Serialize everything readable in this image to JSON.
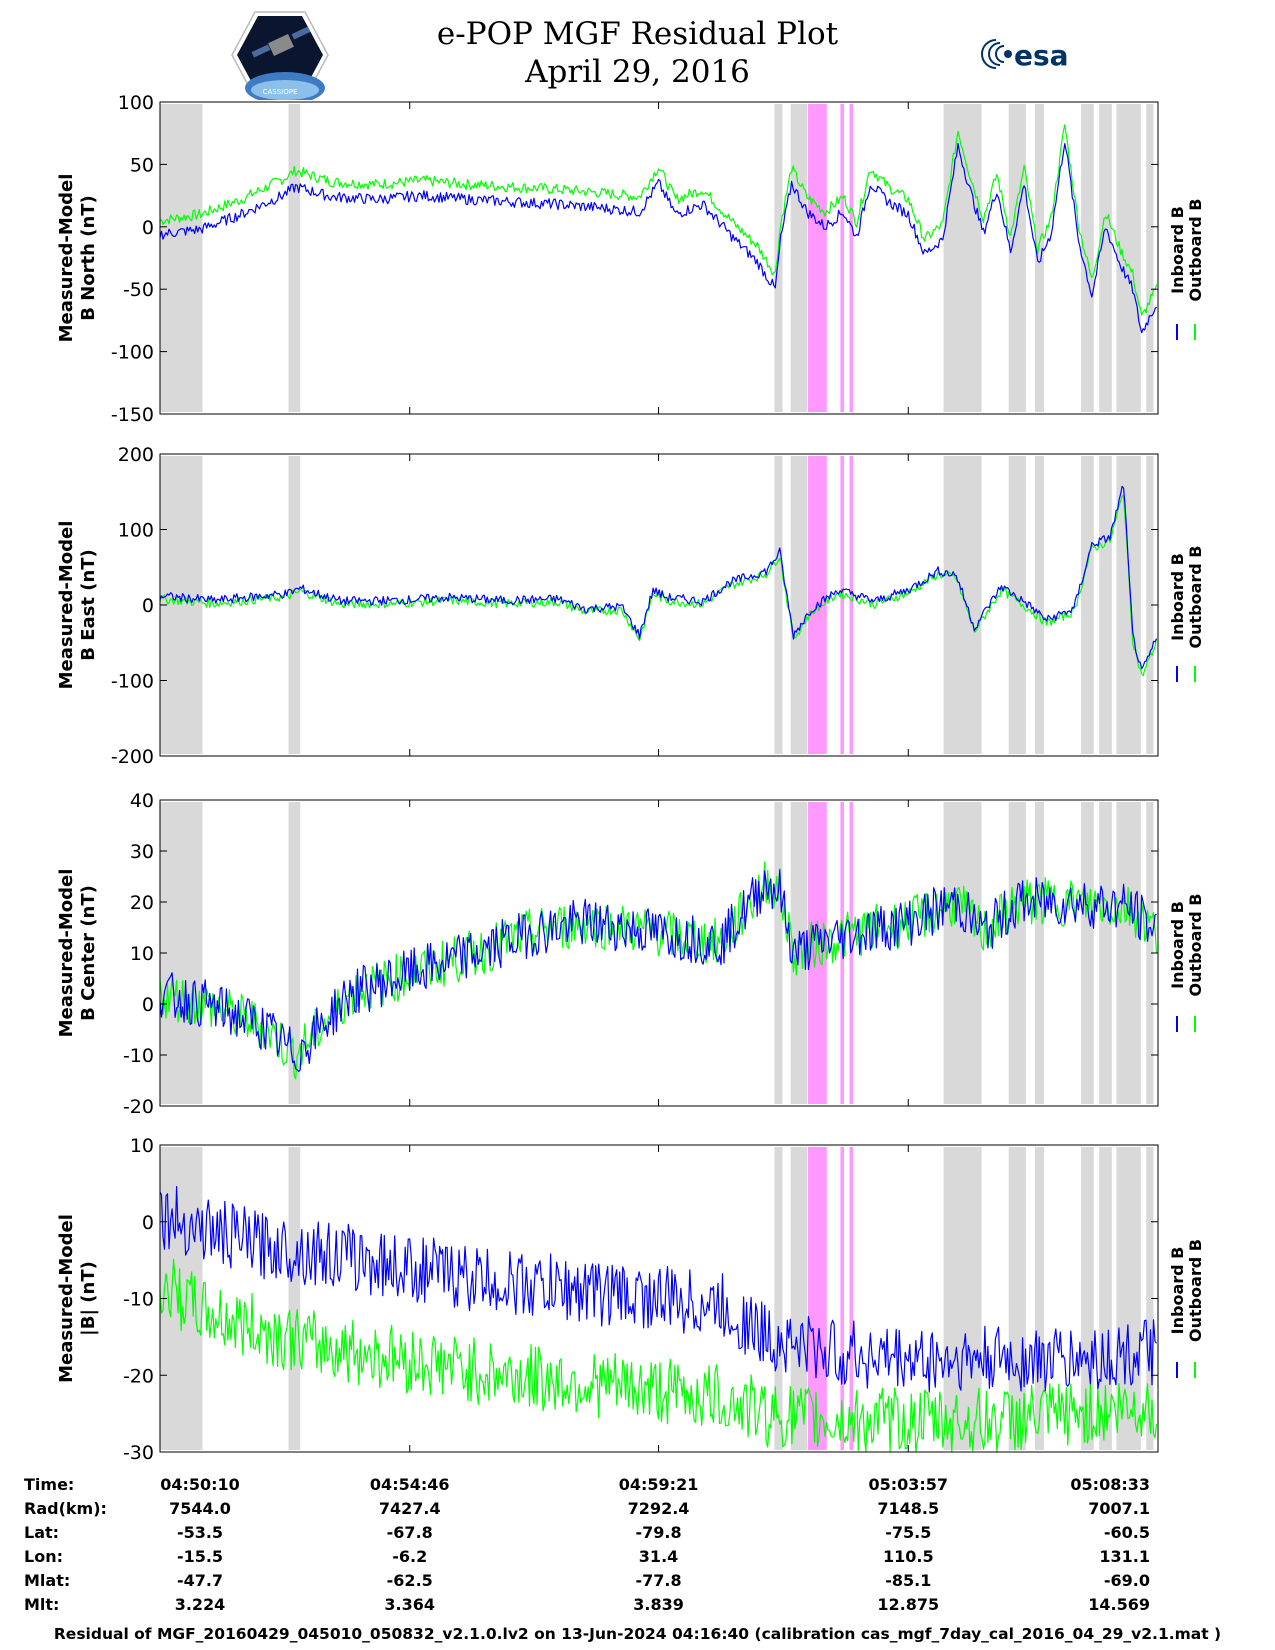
{
  "header": {
    "title": "e-POP MGF Residual Plot",
    "date": "April 29, 2016",
    "logo_left": "CASSIOPE",
    "logo_right": "esa"
  },
  "legend": {
    "inboard": "Inboard B",
    "outboard": "Outboard B",
    "inboard_color": "#0000ff",
    "outboard_color": "#00ff00"
  },
  "shading": {
    "gray_color": "#d9d9d9",
    "pink_color": "#ff99ff",
    "gray_intervals": [
      [
        "04:50:10",
        "04:50:57"
      ],
      [
        "04:52:32",
        "04:52:45"
      ],
      [
        "05:01:29",
        "05:01:38"
      ],
      [
        "05:01:47",
        "05:02:05"
      ],
      [
        "05:04:36",
        "05:05:18"
      ],
      [
        "05:05:48",
        "05:06:07"
      ],
      [
        "05:06:17",
        "05:06:27"
      ],
      [
        "05:07:08",
        "05:07:22"
      ],
      [
        "05:07:28",
        "05:07:42"
      ],
      [
        "05:07:47",
        "05:08:14"
      ],
      [
        "05:08:20",
        "05:08:28"
      ]
    ],
    "pink_intervals": [
      [
        "05:02:06",
        "05:02:27"
      ],
      [
        "05:02:42",
        "05:02:46"
      ],
      [
        "05:02:52",
        "05:02:56"
      ]
    ]
  },
  "chart_data": [
    {
      "type": "line",
      "ylabel": "Measured-Model\nB North (nT)",
      "ylim": [
        -150,
        100
      ],
      "yticks": [
        -150,
        -100,
        -50,
        0,
        50,
        100
      ],
      "xticks": [
        "04:50:10",
        "04:54:46",
        "04:59:21",
        "05:03:57",
        "05:08:33"
      ],
      "x": [
        "04:50:10",
        "04:50:55",
        "04:51:40",
        "04:52:25",
        "04:52:40",
        "04:53:20",
        "04:54:10",
        "04:55:00",
        "04:55:50",
        "04:56:40",
        "04:57:30",
        "04:58:20",
        "04:59:00",
        "04:59:21",
        "04:59:40",
        "05:00:10",
        "05:00:45",
        "05:01:10",
        "05:01:30",
        "05:01:36",
        "05:01:48",
        "05:02:05",
        "05:02:25",
        "05:02:45",
        "05:03:00",
        "05:03:15",
        "05:03:35",
        "05:03:57",
        "05:04:15",
        "05:04:35",
        "05:04:52",
        "05:05:05",
        "05:05:20",
        "05:05:35",
        "05:05:50",
        "05:06:05",
        "05:06:20",
        "05:06:35",
        "05:06:50",
        "05:07:05",
        "05:07:20",
        "05:07:35",
        "05:07:50",
        "05:08:05",
        "05:08:15",
        "05:08:25",
        "05:08:33"
      ],
      "series": [
        {
          "name": "Inboard B",
          "color": "#0000ff",
          "values": [
            -6,
            -2,
            10,
            25,
            32,
            24,
            22,
            25,
            22,
            20,
            18,
            15,
            12,
            35,
            10,
            18,
            -10,
            -28,
            -50,
            -10,
            35,
            12,
            0,
            12,
            -8,
            35,
            20,
            10,
            -22,
            -10,
            65,
            30,
            -5,
            30,
            -20,
            35,
            -30,
            -5,
            70,
            -10,
            -55,
            0,
            -28,
            -50,
            -85,
            -70,
            -60
          ]
        },
        {
          "name": "Outboard B",
          "color": "#00ff00",
          "values": [
            5,
            10,
            22,
            38,
            45,
            36,
            34,
            37,
            34,
            32,
            30,
            27,
            24,
            48,
            22,
            30,
            2,
            -15,
            -38,
            2,
            47,
            24,
            12,
            24,
            4,
            47,
            32,
            22,
            -10,
            2,
            77,
            42,
            7,
            42,
            -8,
            47,
            -18,
            7,
            82,
            2,
            -43,
            12,
            -16,
            -38,
            -73,
            -58,
            -48
          ]
        }
      ]
    },
    {
      "type": "line",
      "ylabel": "Measured-Model\nB East (nT)",
      "ylim": [
        -200,
        200
      ],
      "yticks": [
        -200,
        -100,
        0,
        100,
        200
      ],
      "xticks": [
        "04:50:10",
        "04:54:46",
        "04:59:21",
        "05:03:57",
        "05:08:33"
      ],
      "x": [
        "04:50:10",
        "04:51:10",
        "04:52:30",
        "04:52:45",
        "04:53:30",
        "04:54:30",
        "04:55:30",
        "04:56:30",
        "04:57:30",
        "04:58:00",
        "04:58:40",
        "04:59:00",
        "04:59:15",
        "04:59:30",
        "05:00:10",
        "05:00:40",
        "05:01:20",
        "05:01:35",
        "05:01:50",
        "05:02:10",
        "05:02:40",
        "05:03:20",
        "05:03:57",
        "05:04:30",
        "05:04:50",
        "05:05:10",
        "05:05:40",
        "05:06:10",
        "05:06:30",
        "05:07:00",
        "05:07:20",
        "05:07:40",
        "05:07:55",
        "05:08:05",
        "05:08:15",
        "05:08:33"
      ],
      "series": [
        {
          "name": "Inboard B",
          "color": "#0000ff",
          "values": [
            12,
            6,
            15,
            22,
            5,
            6,
            10,
            6,
            8,
            -5,
            -2,
            -40,
            20,
            10,
            5,
            30,
            45,
            70,
            -40,
            -5,
            20,
            5,
            20,
            45,
            40,
            -30,
            25,
            0,
            -20,
            -5,
            80,
            90,
            160,
            -40,
            -90,
            -40
          ]
        },
        {
          "name": "Outboard B",
          "color": "#00ff00",
          "values": [
            8,
            2,
            11,
            18,
            1,
            2,
            6,
            2,
            4,
            -9,
            -6,
            -45,
            15,
            6,
            1,
            26,
            41,
            66,
            -45,
            -9,
            16,
            1,
            16,
            41,
            36,
            -35,
            20,
            -5,
            -24,
            -9,
            75,
            85,
            150,
            -45,
            -95,
            -45
          ]
        }
      ]
    },
    {
      "type": "line",
      "ylabel": "Measured-Model\nB Center (nT)",
      "ylim": [
        -20,
        40
      ],
      "yticks": [
        -20,
        -10,
        0,
        10,
        20,
        30,
        40
      ],
      "xticks": [
        "04:50:10",
        "04:54:46",
        "04:59:21",
        "05:03:57",
        "05:08:33"
      ],
      "x": [
        "04:50:10",
        "04:51:00",
        "04:52:00",
        "04:52:40",
        "04:53:40",
        "04:54:46",
        "04:56:00",
        "04:57:00",
        "04:58:00",
        "04:59:21",
        "05:00:30",
        "05:01:20",
        "05:01:35",
        "05:01:50",
        "05:02:20",
        "05:03:00",
        "05:03:57",
        "05:04:50",
        "05:05:20",
        "05:06:00",
        "05:07:00",
        "05:08:00",
        "05:08:33"
      ],
      "series": [
        {
          "name": "Inboard B",
          "color": "#0000ff",
          "values": [
            2,
            0,
            -4,
            -10,
            2,
            6,
            10,
            14,
            16,
            14,
            12,
            24,
            22,
            10,
            12,
            14,
            16,
            20,
            14,
            20,
            20,
            19,
            14
          ]
        },
        {
          "name": "Outboard B",
          "color": "#00ff00",
          "values": [
            2,
            0,
            -4,
            -10,
            2,
            6,
            10,
            14,
            16,
            14,
            12,
            24,
            22,
            10,
            12,
            14,
            16,
            20,
            14,
            20,
            20,
            19,
            14
          ]
        }
      ]
    },
    {
      "type": "line",
      "ylabel": "Measured-Model\n|B| (nT)",
      "ylim": [
        -30,
        10
      ],
      "yticks": [
        -30,
        -20,
        -10,
        0,
        10
      ],
      "xticks": [
        "04:50:10",
        "04:54:46",
        "04:59:21",
        "05:03:57",
        "05:08:33"
      ],
      "x": [
        "04:50:10",
        "04:51:00",
        "04:52:00",
        "04:53:00",
        "04:54:46",
        "04:56:30",
        "04:58:00",
        "04:59:21",
        "05:00:30",
        "05:01:20",
        "05:02:30",
        "05:03:57",
        "05:05:30",
        "05:07:00",
        "05:08:33"
      ],
      "series": [
        {
          "name": "Inboard B",
          "color": "#0000ff",
          "values": [
            1,
            -1,
            -3,
            -4,
            -6,
            -8,
            -9,
            -10,
            -11,
            -15,
            -17,
            -18,
            -18,
            -18,
            -17
          ]
        },
        {
          "name": "Outboard B",
          "color": "#00ff00",
          "values": [
            -8,
            -12,
            -14,
            -16,
            -18,
            -20,
            -21,
            -22,
            -23,
            -25,
            -26,
            -26,
            -26,
            -25,
            -24
          ]
        }
      ]
    }
  ],
  "orbit_table": {
    "labels": [
      "Time:",
      "Rad(km):",
      "Lat:",
      "Lon:",
      "Mlat:",
      "Mlt:"
    ],
    "columns": [
      [
        "04:50:10",
        "7544.0",
        "-53.5",
        "-15.5",
        "-47.7",
        "3.224"
      ],
      [
        "04:54:46",
        "7427.4",
        "-67.8",
        "-6.2",
        "-62.5",
        "3.364"
      ],
      [
        "04:59:21",
        "7292.4",
        "-79.8",
        "31.4",
        "-77.8",
        "3.839"
      ],
      [
        "05:03:57",
        "7148.5",
        "-75.5",
        "110.5",
        "-85.1",
        "12.875"
      ],
      [
        "05:08:33",
        "7007.1",
        "-60.5",
        "131.1",
        "-69.0",
        "14.569"
      ]
    ]
  },
  "footer": "Residual of MGF_20160429_045010_050832_v2.1.0.lv2 on 13-Jun-2024 04:16:40 (calibration cas_mgf_7day_cal_2016_04_29_v2.1.mat )"
}
